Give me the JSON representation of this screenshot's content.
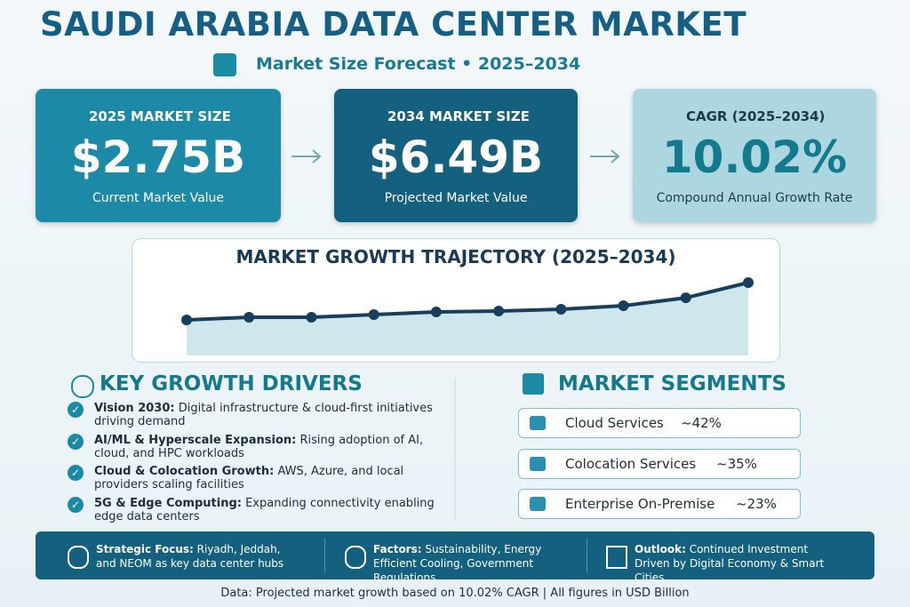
{
  "header": {
    "title": "SAUDI ARABIA DATA CENTER MARKET",
    "subtitle": "Market Size Forecast • 2025–2034"
  },
  "cards": [
    {
      "label": "2025 MARKET SIZE",
      "value": "$2.75B",
      "caption": "Current Market Value"
    },
    {
      "label": "2034 MARKET SIZE",
      "value": "$6.49B",
      "caption": "Projected Market Value"
    },
    {
      "label": "CAGR (2025–2034)",
      "value": "10.02%",
      "caption": "Compound Annual Growth Rate"
    }
  ],
  "trajectory": {
    "type": "line",
    "title": "MARKET GROWTH TRAJECTORY (2025–2034)",
    "values": [
      2.75,
      3.02,
      3.02,
      3.28,
      3.55,
      3.64,
      3.82,
      4.17,
      4.97,
      6.49
    ]
  },
  "drivers": {
    "title": "KEY GROWTH DRIVERS",
    "items": [
      {
        "label": "Vision 2030:",
        "text": "Digital infrastructure & cloud-first initiatives driving demand"
      },
      {
        "label": "AI/ML & Hyperscale Expansion:",
        "text": "Rising adoption of AI, cloud, and HPC workloads"
      },
      {
        "label": "Cloud & Colocation Growth:",
        "text": "AWS, Azure, and local providers scaling facilities"
      },
      {
        "label": "5G & Edge Computing:",
        "text": "Expanding connectivity enabling edge data centers"
      }
    ]
  },
  "segments": {
    "title": "MARKET SEGMENTS",
    "items": [
      {
        "name": "Cloud Services",
        "share": "~42%"
      },
      {
        "name": "Colocation Services",
        "share": "~35%"
      },
      {
        "name": "Enterprise On-Premise",
        "share": "~23%"
      }
    ]
  },
  "footer_bar": [
    {
      "label": "Strategic Focus:",
      "text": "Riyadh, Jeddah, and NEOM as key data center hubs"
    },
    {
      "label": "Factors:",
      "text": "Sustainability, Energy Efficient Cooling, Government Regulations"
    },
    {
      "label": "Outlook:",
      "text": "Continued Investment Driven by Digital Economy & Smart Cities"
    }
  ],
  "note": "Data: Projected market growth based on 10.02% CAGR | All figures in USD Billion"
}
